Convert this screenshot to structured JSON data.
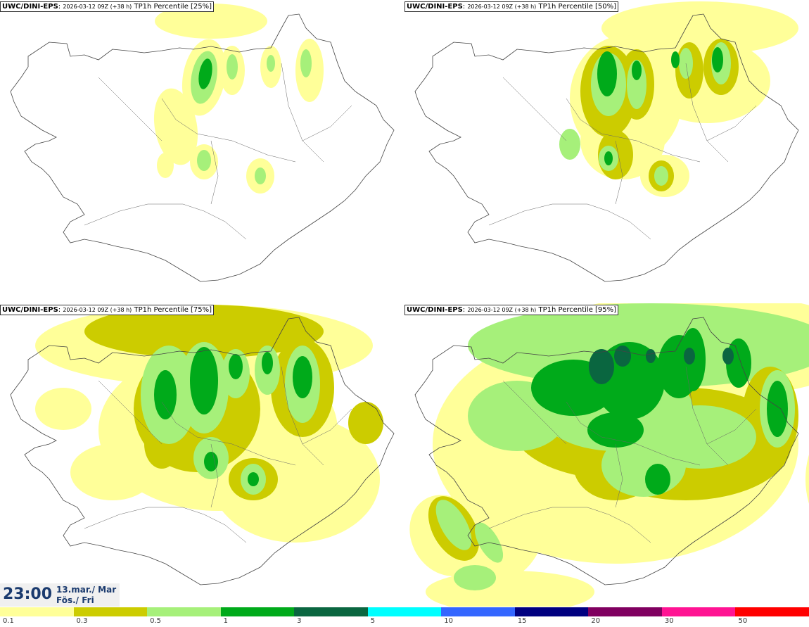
{
  "panels": [
    {
      "source": "UWC/DINI-EPS",
      "run": "2026-03-12 09Z (+38 h)",
      "title": "TP1h Percentile [25%]"
    },
    {
      "source": "UWC/DINI-EPS",
      "run": "2026-03-12 09Z (+38 h)",
      "title": "TP1h Percentile [50%]"
    },
    {
      "source": "UWC/DINI-EPS",
      "run": "2026-03-12 09Z (+38 h)",
      "title": "TP1h Percentile [75%]"
    },
    {
      "source": "UWC/DINI-EPS",
      "run": "2026-03-12 09Z (+38 h)",
      "title": "TP1h Percentile [95%]"
    }
  ],
  "valid_time": {
    "time": "23:00",
    "date_line1": "13.mar./ Mar",
    "date_line2": "Fös./ Fri"
  },
  "legend": {
    "labels": [
      "0.1",
      "0.3",
      "0.5",
      "1",
      "3",
      "5",
      "10",
      "15",
      "20",
      "30",
      "50"
    ],
    "colors": [
      "#ffff99",
      "#cccc00",
      "#a6f07a",
      "#00aa1a",
      "#0a6640",
      "#00ffff",
      "#3366ff",
      "#000080",
      "#800060",
      "#ff1493",
      "#ff0000"
    ]
  }
}
